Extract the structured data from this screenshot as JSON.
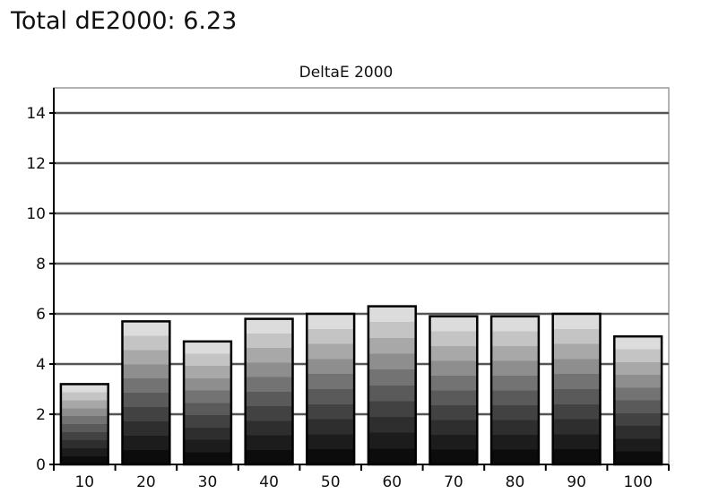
{
  "header": {
    "title": "Total dE2000: 6.23"
  },
  "chart_data": {
    "type": "bar",
    "title": "DeltaE 2000",
    "xlabel": "",
    "ylabel": "",
    "categories": [
      "10",
      "20",
      "30",
      "40",
      "50",
      "60",
      "70",
      "80",
      "90",
      "100"
    ],
    "values": [
      3.2,
      5.7,
      4.9,
      5.8,
      6.0,
      6.3,
      5.9,
      5.9,
      6.0,
      5.1
    ],
    "ylim": [
      0,
      15
    ],
    "yticks": [
      0,
      2,
      4,
      6,
      8,
      10,
      12,
      14
    ],
    "grid": true,
    "legend": "none",
    "bar_fill": "grayscale gradient (dark bottom to light top)",
    "bar_outline": "#000000"
  }
}
